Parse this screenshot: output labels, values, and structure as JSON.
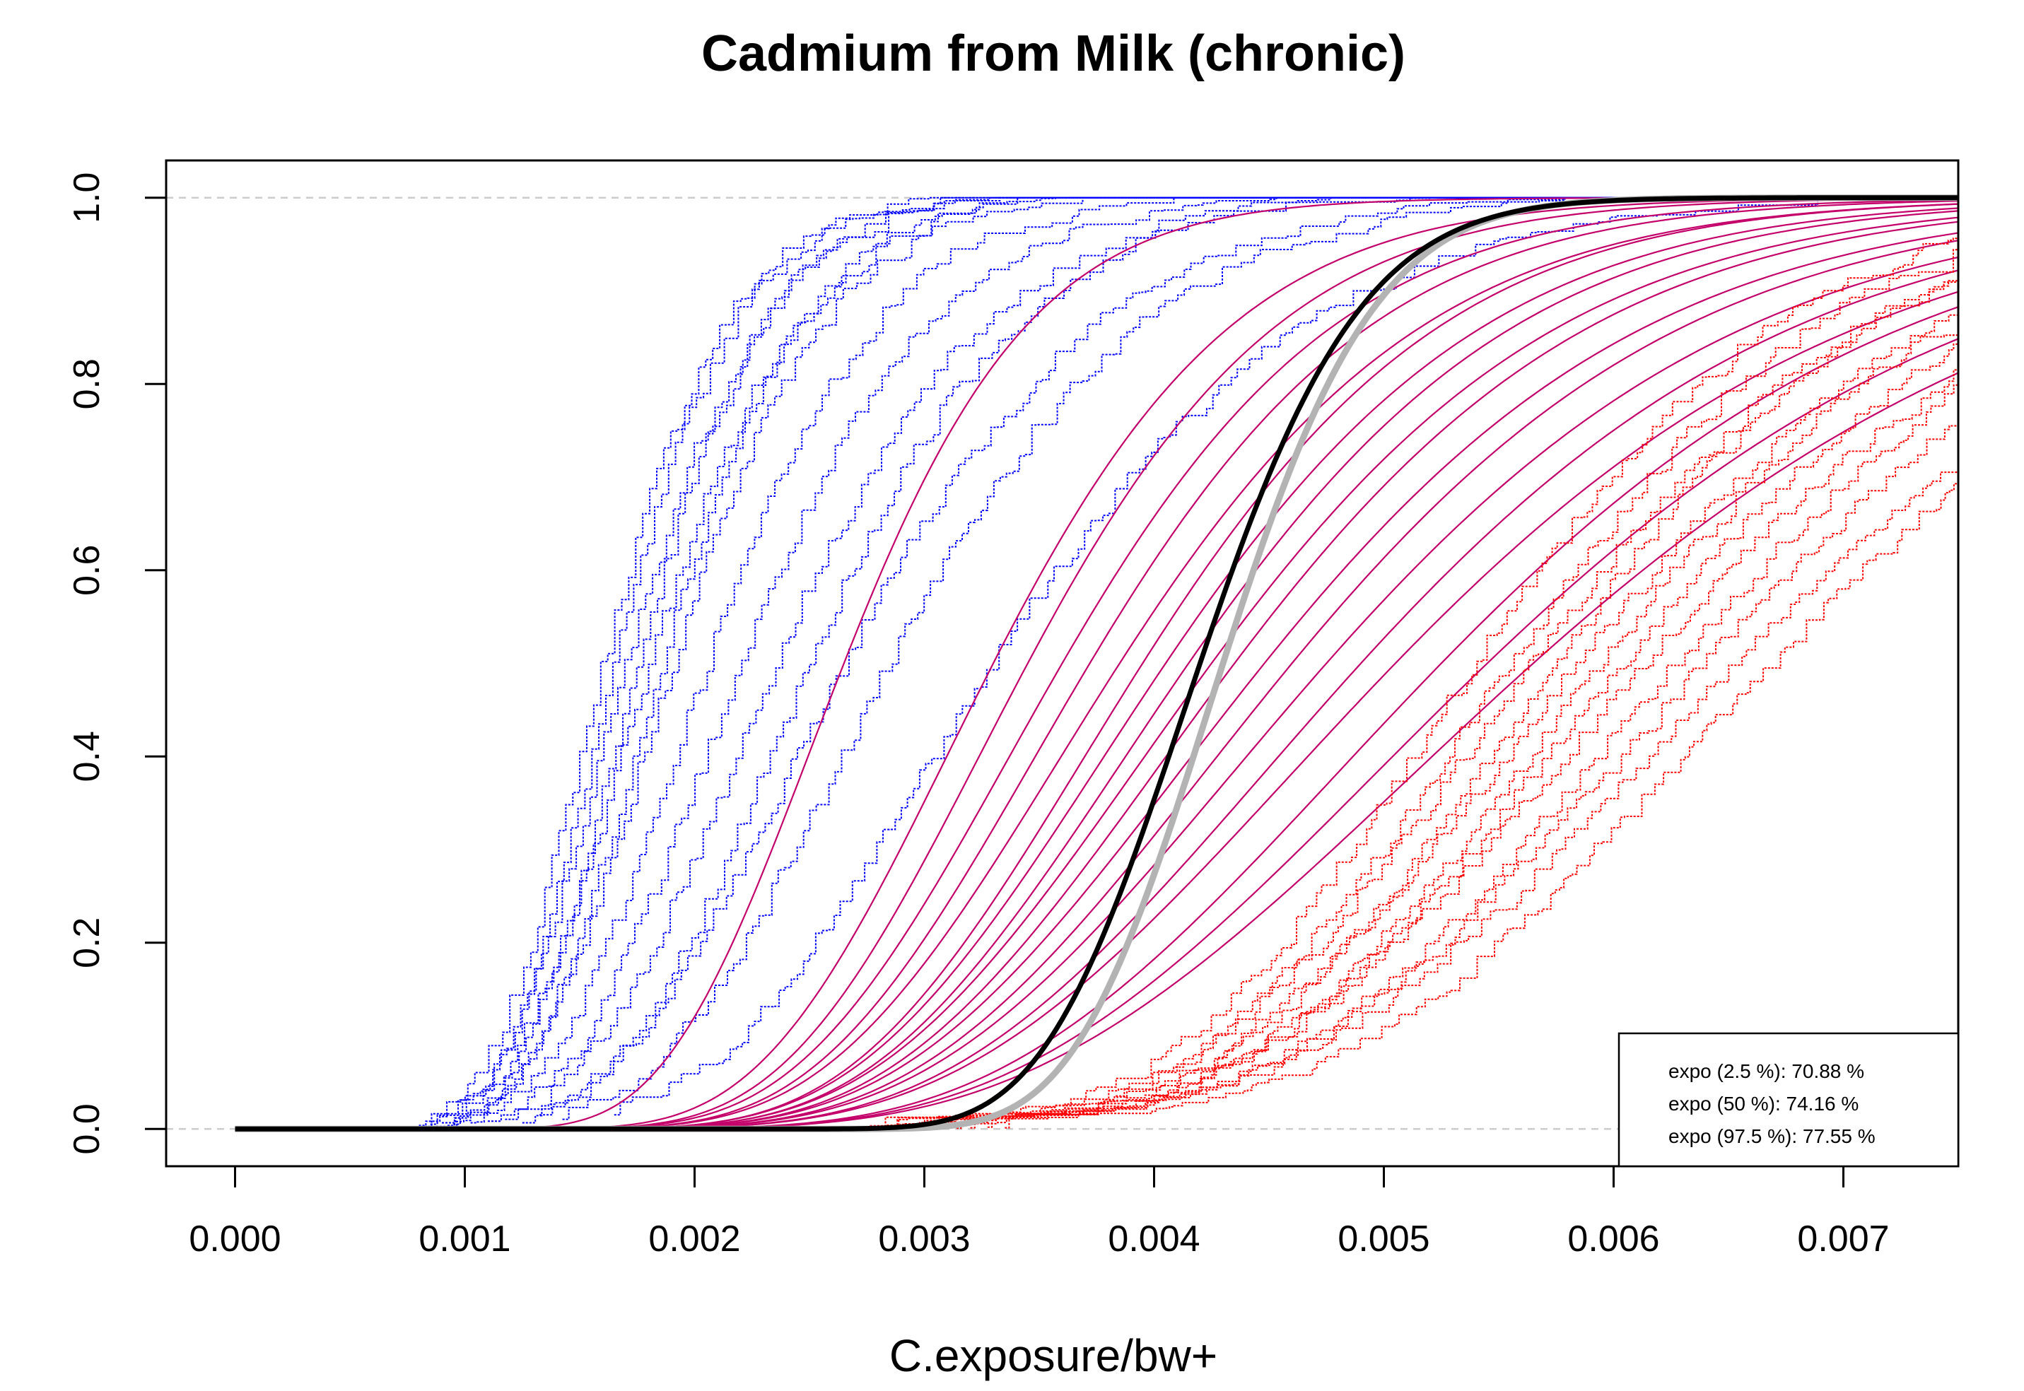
{
  "chart_data": {
    "type": "line",
    "title": "Cadmium from Milk (chronic)",
    "xlabel": "C.exposure/bw+",
    "ylabel": "",
    "xlim": [
      -0.0003,
      0.0075
    ],
    "ylim": [
      -0.04,
      1.04
    ],
    "xticks": [
      0.0,
      0.001,
      0.002,
      0.003,
      0.004,
      0.005,
      0.006,
      0.007
    ],
    "xtick_labels": [
      "0.000",
      "0.001",
      "0.002",
      "0.003",
      "0.004",
      "0.005",
      "0.006",
      "0.007"
    ],
    "yticks": [
      0.0,
      0.2,
      0.4,
      0.6,
      0.8,
      1.0
    ],
    "ytick_labels": [
      "0.0",
      "0.2",
      "0.4",
      "0.6",
      "0.8",
      "1.0"
    ],
    "reference_lines_y": [
      0.0,
      1.0
    ],
    "colors": {
      "lower_band": "#0000ff",
      "fitted": "#c4006a",
      "upper_band": "#ff0000",
      "median": "#000000",
      "reference": "#b3b3b3"
    },
    "series_groups": [
      {
        "name": "lower bound empirical CDFs",
        "color": "#0000ff",
        "style": "dotted-step",
        "curves": [
          {
            "median": 0.0016,
            "spread": 0.26
          },
          {
            "median": 0.00165,
            "spread": 0.25
          },
          {
            "median": 0.0017,
            "spread": 0.27
          },
          {
            "median": 0.00175,
            "spread": 0.25
          },
          {
            "median": 0.0018,
            "spread": 0.28
          },
          {
            "median": 0.00185,
            "spread": 0.26
          },
          {
            "median": 0.0019,
            "spread": 0.27
          },
          {
            "median": 0.00205,
            "spread": 0.28
          },
          {
            "median": 0.0022,
            "spread": 0.29
          },
          {
            "median": 0.00235,
            "spread": 0.3
          },
          {
            "median": 0.0025,
            "spread": 0.28
          },
          {
            "median": 0.00265,
            "spread": 0.32
          },
          {
            "median": 0.00285,
            "spread": 0.3
          },
          {
            "median": 0.0033,
            "spread": 0.32
          }
        ]
      },
      {
        "name": "fitted lognormal CDFs",
        "color": "#c4006a",
        "style": "solid",
        "curves": [
          {
            "median": 0.00265,
            "spread": 0.24
          },
          {
            "median": 0.0033,
            "spread": 0.25
          },
          {
            "median": 0.00345,
            "spread": 0.25
          },
          {
            "median": 0.0036,
            "spread": 0.26
          },
          {
            "median": 0.00372,
            "spread": 0.26
          },
          {
            "median": 0.00385,
            "spread": 0.27
          },
          {
            "median": 0.00395,
            "spread": 0.26
          },
          {
            "median": 0.00405,
            "spread": 0.27
          },
          {
            "median": 0.00415,
            "spread": 0.27
          },
          {
            "median": 0.00425,
            "spread": 0.28
          },
          {
            "median": 0.00435,
            "spread": 0.28
          },
          {
            "median": 0.00448,
            "spread": 0.29
          },
          {
            "median": 0.0046,
            "spread": 0.29
          },
          {
            "median": 0.00475,
            "spread": 0.3
          },
          {
            "median": 0.0049,
            "spread": 0.3
          },
          {
            "median": 0.00505,
            "spread": 0.31
          },
          {
            "median": 0.00525,
            "spread": 0.3
          },
          {
            "median": 0.00545,
            "spread": 0.31
          },
          {
            "median": 0.00565,
            "spread": 0.32
          }
        ]
      },
      {
        "name": "upper bound empirical CDFs",
        "color": "#ff0000",
        "style": "dotted-step",
        "curves": [
          {
            "median": 0.0054,
            "spread": 0.2
          },
          {
            "median": 0.00555,
            "spread": 0.2
          },
          {
            "median": 0.00565,
            "spread": 0.21
          },
          {
            "median": 0.00575,
            "spread": 0.2
          },
          {
            "median": 0.00585,
            "spread": 0.22
          },
          {
            "median": 0.00595,
            "spread": 0.21
          },
          {
            "median": 0.00605,
            "spread": 0.22
          },
          {
            "median": 0.00615,
            "spread": 0.23
          },
          {
            "median": 0.00628,
            "spread": 0.22
          },
          {
            "median": 0.0064,
            "spread": 0.23
          },
          {
            "median": 0.00655,
            "spread": 0.24
          },
          {
            "median": 0.0067,
            "spread": 0.23
          }
        ]
      },
      {
        "name": "reference CDF",
        "color": "#b3b3b3",
        "style": "thick",
        "curves": [
          {
            "median": 0.0043,
            "spread": 0.12
          }
        ]
      },
      {
        "name": "median CDF",
        "color": "#000000",
        "style": "thick",
        "curves": [
          {
            "median": 0.0042,
            "spread": 0.13
          }
        ]
      }
    ],
    "legend": {
      "position": "bottom-right",
      "entries": [
        "expo (2.5 %): 70.88 %",
        "expo (50 %): 74.16 %",
        "expo (97.5 %): 77.55 %"
      ]
    }
  }
}
